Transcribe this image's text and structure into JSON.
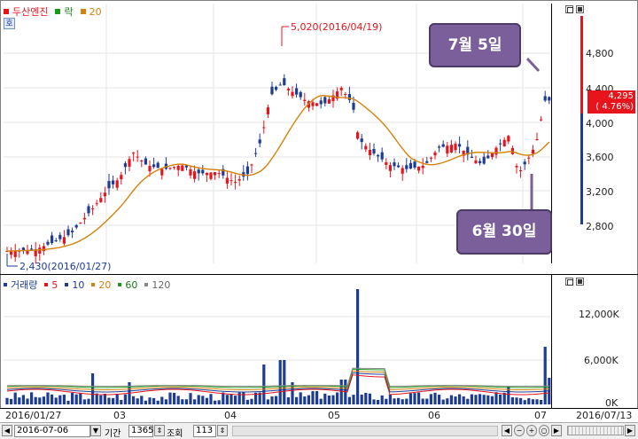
{
  "price_panel": {
    "legend": {
      "series1": "두산엔진",
      "series2": "락",
      "series3": "20"
    },
    "y_ticks": [
      "4,800",
      "4,400",
      "4,000",
      "3,600",
      "3,200",
      "2,800"
    ],
    "high_label": "5,020(2016/04/19)",
    "low_label": "2,430(2016/01/27)",
    "current_price": "4,295",
    "current_change": "( 4.76%)",
    "panel_icon": "호"
  },
  "volume_panel": {
    "legend": {
      "title": "거래량",
      "ma5": "5",
      "ma10": "10",
      "ma20": "20",
      "ma60": "60",
      "ma120": "120"
    },
    "y_ticks": [
      "12,000K",
      "6,000K",
      "0K"
    ]
  },
  "x_axis": {
    "labels": [
      "2016/01/27",
      "03",
      "04",
      "05",
      "06",
      "07",
      "2016/07/13"
    ]
  },
  "callouts": {
    "top": "7월 5일",
    "bottom": "6월 30일"
  },
  "toolbar": {
    "date_value": "2016-07-06",
    "period_label": "기간",
    "period_value": "1365",
    "query_label": "조회",
    "query_value": "113"
  },
  "colors": {
    "up": "#e8141c",
    "down": "#1c3c96",
    "ma": "#d4820a",
    "callout": "#7a5f9a"
  },
  "icons": [
    "window-restore-icon",
    "window-close-icon",
    "calendar-dropdown-icon",
    "zoom-in-icon",
    "zoom-out-icon",
    "scroll-left-icon",
    "scroll-right-icon"
  ]
}
